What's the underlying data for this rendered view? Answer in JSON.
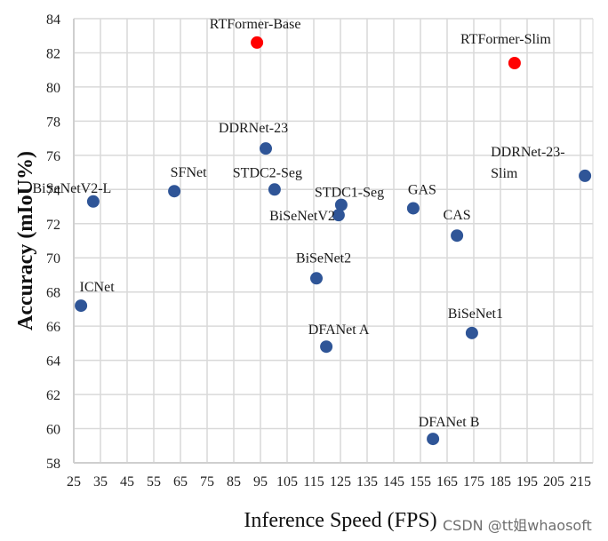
{
  "chart_data": {
    "type": "scatter",
    "title": "",
    "xlabel": "Inference Speed (FPS)",
    "ylabel": "Accuracy (mIoU%)",
    "xlim": [
      25,
      220
    ],
    "ylim": [
      58,
      84
    ],
    "xticks": [
      25,
      35,
      45,
      55,
      65,
      75,
      85,
      95,
      105,
      115,
      125,
      135,
      145,
      155,
      165,
      175,
      185,
      195,
      205,
      215
    ],
    "yticks": [
      58,
      60,
      62,
      64,
      66,
      68,
      70,
      72,
      74,
      76,
      78,
      80,
      82,
      84
    ],
    "grid": true,
    "legend": "none",
    "colors": {
      "ours": "#ff0000",
      "others": "#2f5597",
      "grid": "#d9d9d9"
    },
    "points": [
      {
        "name": "RTFormer-Base",
        "x": 93.7,
        "y": 82.6,
        "group": "ours"
      },
      {
        "name": "RTFormer-Slim",
        "x": 190.3,
        "y": 81.4,
        "group": "ours"
      },
      {
        "name": "DDRNet-23",
        "x": 97.0,
        "y": 76.4,
        "group": "others"
      },
      {
        "name": "DDRNet-23-Slim",
        "x": 216.7,
        "y": 74.8,
        "group": "others"
      },
      {
        "name": "BiSeNetV2-L",
        "x": 32.3,
        "y": 73.3,
        "group": "others"
      },
      {
        "name": "SFNet",
        "x": 62.7,
        "y": 73.9,
        "group": "others"
      },
      {
        "name": "STDC2-Seg",
        "x": 100.3,
        "y": 74.0,
        "group": "others"
      },
      {
        "name": "STDC1-Seg",
        "x": 125.3,
        "y": 73.1,
        "group": "others"
      },
      {
        "name": "BiSeNetV2",
        "x": 124.3,
        "y": 72.5,
        "group": "others"
      },
      {
        "name": "GAS",
        "x": 152.3,
        "y": 72.9,
        "group": "others"
      },
      {
        "name": "CAS",
        "x": 168.7,
        "y": 71.3,
        "group": "others"
      },
      {
        "name": "BiSeNet2",
        "x": 116.0,
        "y": 68.8,
        "group": "others"
      },
      {
        "name": "ICNet",
        "x": 27.7,
        "y": 67.2,
        "group": "others"
      },
      {
        "name": "BiSeNet1",
        "x": 174.3,
        "y": 65.6,
        "group": "others"
      },
      {
        "name": "DFANet A",
        "x": 119.7,
        "y": 64.8,
        "group": "others"
      },
      {
        "name": "DFANet B",
        "x": 159.7,
        "y": 59.4,
        "group": "others"
      }
    ]
  },
  "watermark": "CSDN @tt姐whaosoft"
}
